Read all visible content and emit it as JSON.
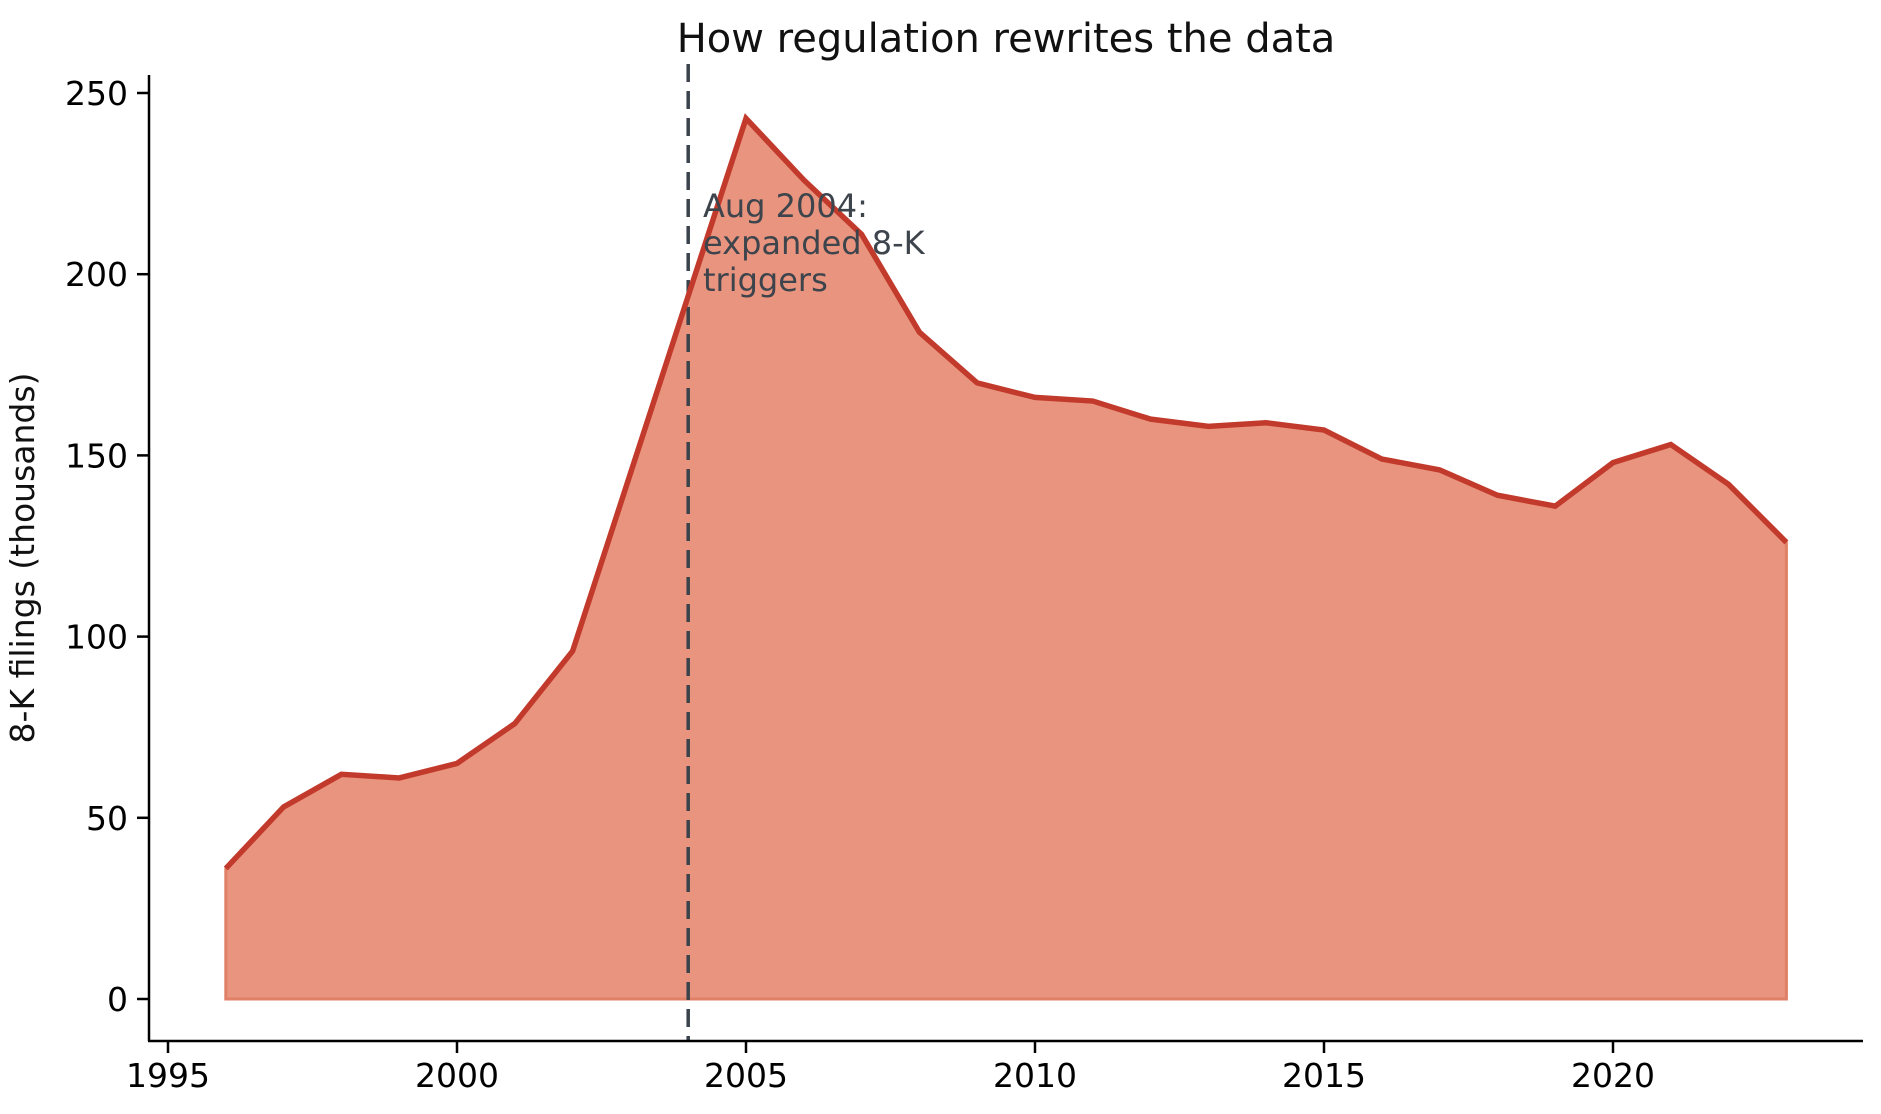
{
  "chart_data": {
    "type": "area",
    "title": "How regulation rewrites the data",
    "xlabel": "",
    "ylabel": "8-K filings (thousands)",
    "series_name": "8-K filings (thousands)",
    "x": [
      1996,
      1997,
      1998,
      1999,
      2000,
      2001,
      2002,
      2003,
      2004,
      2005,
      2006,
      2007,
      2008,
      2009,
      2010,
      2011,
      2012,
      2013,
      2014,
      2015,
      2016,
      2017,
      2018,
      2019,
      2020,
      2021,
      2022,
      2023
    ],
    "values": [
      36,
      53,
      62,
      61,
      65,
      76,
      96,
      145,
      194,
      243,
      226,
      211,
      184,
      170,
      166,
      165,
      160,
      158,
      159,
      157,
      149,
      146,
      139,
      136,
      148,
      153,
      142,
      126
    ],
    "xticks": [
      "1995",
      "2000",
      "2005",
      "2010",
      "2015",
      "2020"
    ],
    "xtick_values": [
      1995,
      2000,
      2005,
      2010,
      2015,
      2020
    ],
    "yticks": [
      "0",
      "50",
      "100",
      "150",
      "200",
      "250"
    ],
    "ytick_values": [
      0,
      50,
      100,
      150,
      200,
      250
    ],
    "xlim": [
      1994.6,
      2024.3
    ],
    "ylim": [
      0,
      260
    ],
    "grid": false,
    "legend_position": "none",
    "annotation": {
      "year": 2004,
      "lines": [
        "Aug 2004:",
        "expanded 8-K",
        "triggers"
      ]
    },
    "colors": {
      "line": "#c23a2b",
      "fill": "#e9947f",
      "fill_edge": "#e08067",
      "vline": "#3a424b",
      "annotation_text": "#3d444c",
      "axis": "#000000",
      "title": "#111111"
    }
  }
}
